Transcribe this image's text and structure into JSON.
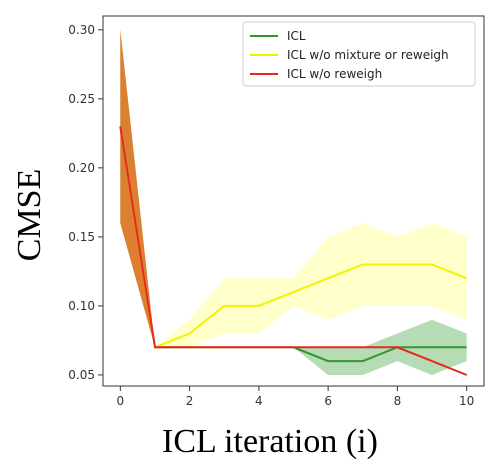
{
  "chart_data": {
    "type": "line",
    "title": "",
    "xlabel": "ICL iteration (i)",
    "ylabel": "CMSE",
    "xlim": [
      -0.5,
      10.5
    ],
    "ylim": [
      0.042,
      0.31
    ],
    "xticks": [
      0,
      2,
      4,
      6,
      8,
      10
    ],
    "yticks": [
      0.05,
      0.1,
      0.15,
      0.2,
      0.25,
      0.3
    ],
    "ytick_labels": [
      "0.05",
      "0.10",
      "0.15",
      "0.20",
      "0.25",
      "0.30"
    ],
    "grid": false,
    "legend_position": "upper-right",
    "x": [
      0,
      1,
      2,
      3,
      4,
      5,
      6,
      7,
      8,
      9,
      10
    ],
    "series": [
      {
        "name": "ICL",
        "color": "#2e9a2e",
        "band_color": "#2e9a2e",
        "values": [
          0.23,
          0.07,
          0.07,
          0.07,
          0.07,
          0.07,
          0.06,
          0.06,
          0.07,
          0.07,
          0.07
        ],
        "lower": [
          0.16,
          0.07,
          0.07,
          0.07,
          0.07,
          0.07,
          0.05,
          0.05,
          0.06,
          0.05,
          0.06
        ],
        "upper": [
          0.3,
          0.07,
          0.07,
          0.07,
          0.07,
          0.07,
          0.07,
          0.07,
          0.08,
          0.09,
          0.08
        ]
      },
      {
        "name": "ICL w/o mixture or reweigh",
        "color": "#f2f200",
        "band_color": "#ffff66",
        "values": [
          0.23,
          0.07,
          0.08,
          0.1,
          0.1,
          0.11,
          0.12,
          0.13,
          0.13,
          0.13,
          0.12
        ],
        "lower": [
          0.16,
          0.07,
          0.07,
          0.08,
          0.08,
          0.1,
          0.09,
          0.1,
          0.1,
          0.1,
          0.09
        ],
        "upper": [
          0.3,
          0.07,
          0.09,
          0.12,
          0.12,
          0.12,
          0.15,
          0.16,
          0.15,
          0.16,
          0.15
        ]
      },
      {
        "name": "ICL w/o reweigh",
        "color": "#e8281e",
        "band_color": "#e86010",
        "values": [
          0.23,
          0.07,
          0.07,
          0.07,
          0.07,
          0.07,
          0.07,
          0.07,
          0.07,
          0.06,
          0.05
        ],
        "lower": [
          0.16,
          0.07,
          0.07,
          0.07,
          0.07,
          0.07,
          0.07,
          0.07,
          0.07,
          0.06,
          0.05
        ],
        "upper": [
          0.3,
          0.07,
          0.07,
          0.07,
          0.07,
          0.07,
          0.07,
          0.07,
          0.07,
          0.06,
          0.05
        ]
      }
    ]
  }
}
